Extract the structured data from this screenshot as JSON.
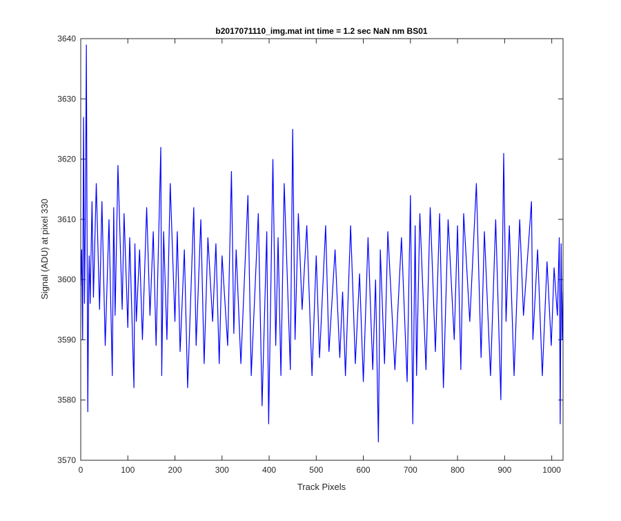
{
  "chart_data": {
    "type": "line",
    "title": "b2017071110_img.mat int time = 1.2 sec  NaN nm BS01",
    "xlabel": "Track Pixels",
    "ylabel": "Signal (ADU) at pixel 330",
    "xlim": [
      0,
      1024
    ],
    "ylim": [
      3570,
      3640
    ],
    "xticks": [
      0,
      100,
      200,
      300,
      400,
      500,
      600,
      700,
      800,
      900,
      1000
    ],
    "yticks": [
      3570,
      3580,
      3590,
      3600,
      3610,
      3620,
      3630,
      3640
    ],
    "grid": false,
    "line_color": "#0000ff",
    "series": [
      {
        "x": [
          0,
          2,
          4,
          6,
          8,
          10,
          12,
          13,
          15,
          17,
          18,
          20,
          24,
          27,
          33,
          40,
          45,
          52,
          60,
          67,
          70,
          73,
          79,
          88,
          92,
          100,
          104,
          113,
          115,
          118,
          125,
          131,
          140,
          147,
          154,
          160,
          170,
          172,
          176,
          183,
          190,
          200,
          205,
          211,
          220,
          227,
          240,
          245,
          255,
          262,
          270,
          280,
          287,
          294,
          300,
          312,
          320,
          325,
          330,
          340,
          355,
          362,
          377,
          385,
          395,
          399,
          408,
          414,
          419,
          425,
          432,
          445,
          450,
          455,
          462,
          470,
          480,
          491,
          500,
          507,
          520,
          527,
          540,
          550,
          556,
          562,
          573,
          583,
          592,
          600,
          610,
          620,
          626,
          632,
          636,
          645,
          652,
          667,
          681,
          693,
          700,
          705,
          710,
          713,
          720,
          733,
          742,
          753,
          762,
          770,
          780,
          793,
          800,
          807,
          813,
          826,
          840,
          850,
          857,
          870,
          881,
          892,
          898,
          903,
          910,
          920,
          932,
          940,
          957,
          960,
          970,
          980,
          990,
          999,
          1005,
          1012,
          1016,
          1018,
          1020,
          1022,
          1024
        ],
        "y": [
          3599,
          3605,
          3590,
          3627,
          3596,
          3612,
          3639,
          3617,
          3578,
          3600,
          3604,
          3596,
          3613,
          3597,
          3616,
          3595,
          3613,
          3589,
          3610,
          3584,
          3612,
          3594,
          3619,
          3595,
          3611,
          3592,
          3607,
          3582,
          3606,
          3593,
          3605,
          3590,
          3612,
          3594,
          3608,
          3589,
          3622,
          3584,
          3608,
          3590,
          3616,
          3593,
          3608,
          3588,
          3605,
          3582,
          3612,
          3589,
          3610,
          3586,
          3607,
          3593,
          3606,
          3586,
          3604,
          3589,
          3618,
          3591,
          3605,
          3586,
          3614,
          3584,
          3611,
          3579,
          3608,
          3576,
          3620,
          3589,
          3607,
          3584,
          3616,
          3585,
          3625,
          3590,
          3611,
          3595,
          3609,
          3584,
          3604,
          3587,
          3609,
          3588,
          3605,
          3587,
          3598,
          3584,
          3609,
          3586,
          3601,
          3583,
          3607,
          3585,
          3600,
          3573,
          3605,
          3586,
          3608,
          3585,
          3607,
          3583,
          3614,
          3576,
          3609,
          3584,
          3611,
          3585,
          3612,
          3588,
          3611,
          3582,
          3610,
          3590,
          3609,
          3585,
          3611,
          3593,
          3616,
          3587,
          3608,
          3584,
          3610,
          3580,
          3621,
          3593,
          3609,
          3584,
          3610,
          3594,
          3613,
          3590,
          3605,
          3584,
          3603,
          3589,
          3602,
          3594,
          3607,
          3576,
          3606,
          3590,
          3598
        ]
      }
    ]
  }
}
